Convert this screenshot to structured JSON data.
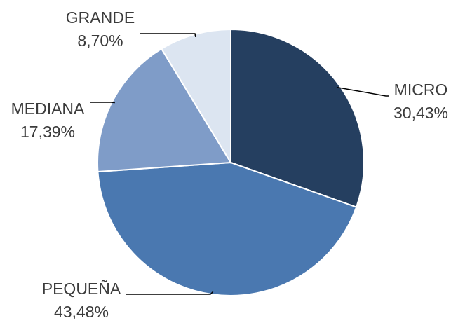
{
  "chart_data": {
    "type": "pie",
    "categories": [
      "MICRO",
      "PEQUEÑA",
      "MEDIANA",
      "GRANDE"
    ],
    "values": [
      30.43,
      43.48,
      17.39,
      8.7
    ],
    "value_labels": [
      "30,43%",
      "43,48%",
      "17,39%",
      "8,70%"
    ],
    "colors": [
      "#253f60",
      "#4a78b0",
      "#7f9cc8",
      "#dce5f1"
    ]
  }
}
